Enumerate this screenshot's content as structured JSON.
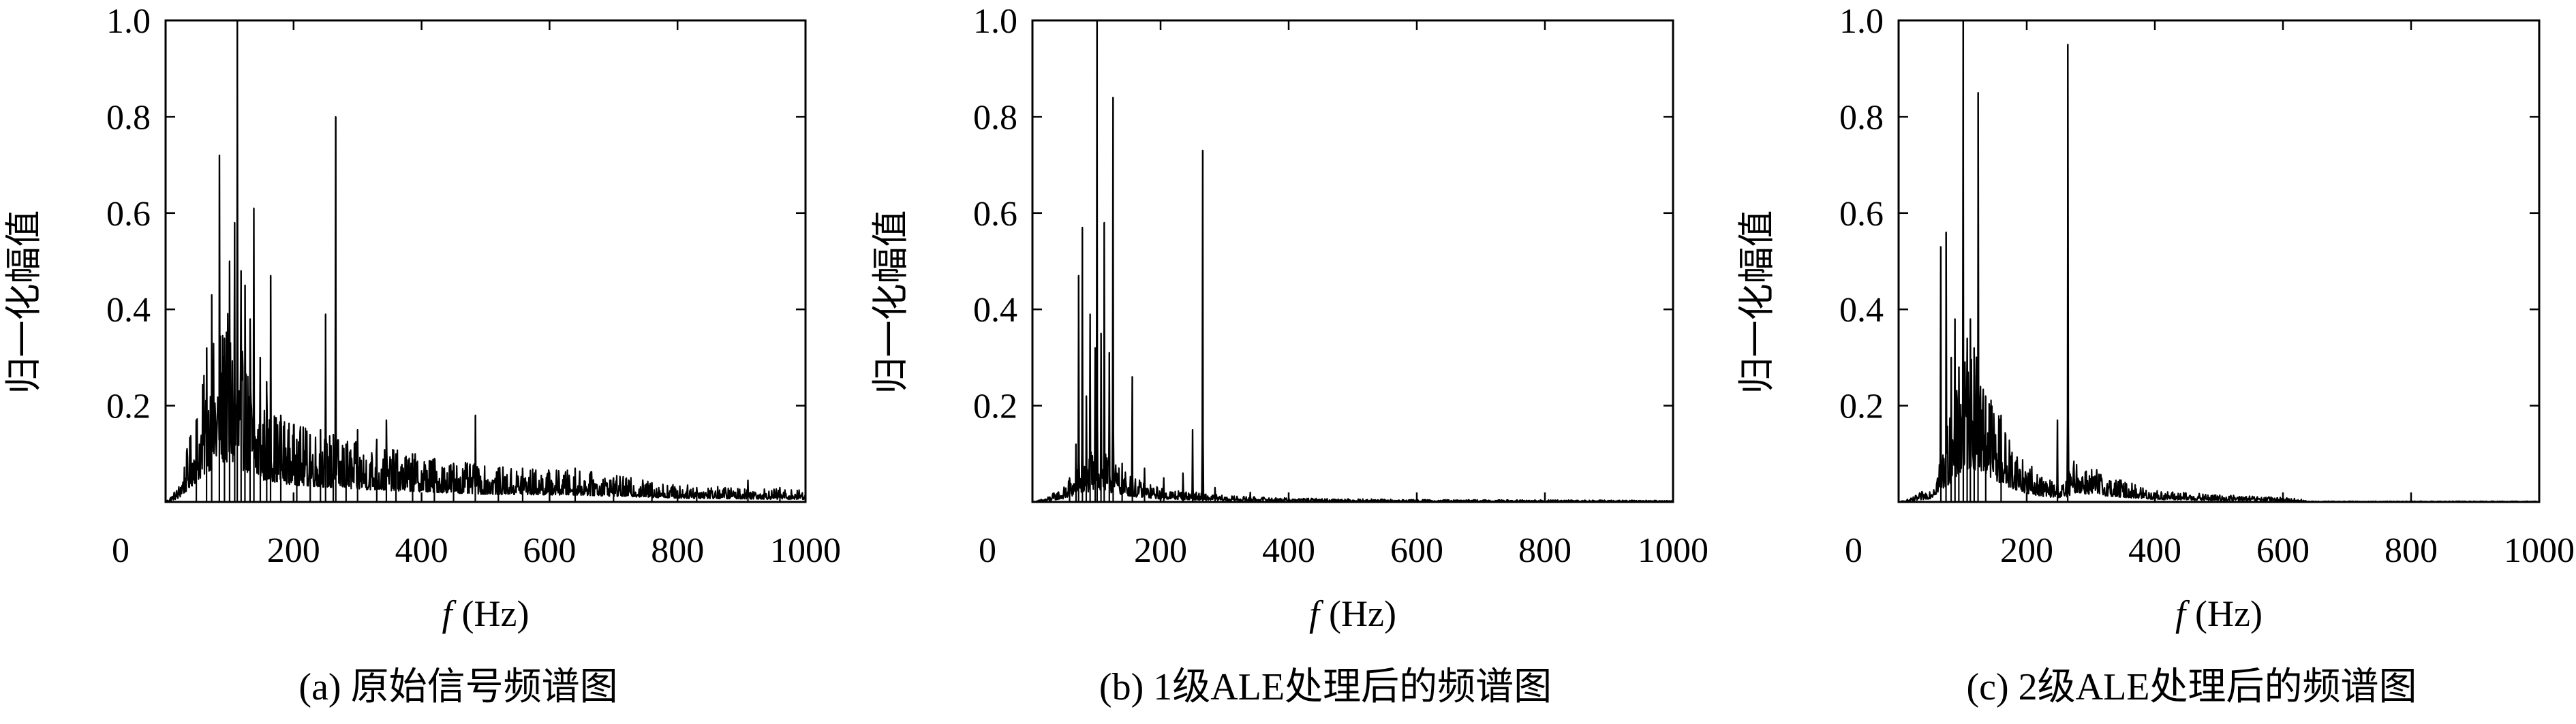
{
  "figure": {
    "panels": [
      {
        "caption": "(a) 原始信号频谱图",
        "ylabel": "归一化幅值",
        "xlabel_italic": "f",
        "xlabel_unit": "(Hz)"
      },
      {
        "caption": "(b) 1级ALE处理后的频谱图",
        "ylabel": "归一化幅值",
        "xlabel_italic": "f",
        "xlabel_unit": "(Hz)"
      },
      {
        "caption": "(c) 2级ALE处理后的频谱图",
        "ylabel": "归一化幅值",
        "xlabel_italic": "f",
        "xlabel_unit": "(Hz)"
      }
    ]
  },
  "chart_data": [
    {
      "type": "line",
      "title": "(a) 原始信号频谱图",
      "xlabel": "f (Hz)",
      "ylabel": "归一化幅值",
      "xlim": [
        0,
        1000
      ],
      "ylim": [
        0,
        1.0
      ],
      "x_ticks": [
        "0",
        "200",
        "400",
        "600",
        "800",
        "1000"
      ],
      "y_ticks": [
        "0.2",
        "0.4",
        "0.6",
        "0.8",
        "1.0"
      ],
      "grid": false,
      "noise_profile": [
        [
          0,
          0.0
        ],
        [
          20,
          0.02
        ],
        [
          40,
          0.09
        ],
        [
          60,
          0.16
        ],
        [
          80,
          0.22
        ],
        [
          100,
          0.24
        ],
        [
          120,
          0.19
        ],
        [
          150,
          0.13
        ],
        [
          200,
          0.1
        ],
        [
          300,
          0.075
        ],
        [
          400,
          0.06
        ],
        [
          500,
          0.045
        ],
        [
          650,
          0.04
        ],
        [
          800,
          0.022
        ],
        [
          1000,
          0.015
        ]
      ],
      "peaks": [
        [
          48,
          0.17
        ],
        [
          64,
          0.32
        ],
        [
          72,
          0.43
        ],
        [
          84,
          0.72
        ],
        [
          92,
          0.34
        ],
        [
          100,
          0.5
        ],
        [
          108,
          0.58
        ],
        [
          112,
          1.0
        ],
        [
          118,
          0.48
        ],
        [
          124,
          0.45
        ],
        [
          132,
          0.38
        ],
        [
          138,
          0.61
        ],
        [
          148,
          0.3
        ],
        [
          158,
          0.25
        ],
        [
          164,
          0.47
        ],
        [
          180,
          0.18
        ],
        [
          205,
          0.13
        ],
        [
          226,
          0.14
        ],
        [
          242,
          0.15
        ],
        [
          250,
          0.39
        ],
        [
          262,
          0.14
        ],
        [
          266,
          0.8
        ],
        [
          282,
          0.12
        ],
        [
          300,
          0.15
        ],
        [
          330,
          0.13
        ],
        [
          345,
          0.17
        ],
        [
          360,
          0.1
        ],
        [
          386,
          0.1
        ],
        [
          420,
          0.09
        ],
        [
          450,
          0.08
        ],
        [
          484,
          0.18
        ],
        [
          520,
          0.07
        ],
        [
          558,
          0.07
        ],
        [
          600,
          0.06
        ],
        [
          640,
          0.07
        ],
        [
          700,
          0.05
        ],
        [
          760,
          0.04
        ],
        [
          830,
          0.03
        ],
        [
          910,
          0.045
        ],
        [
          960,
          0.03
        ]
      ]
    },
    {
      "type": "line",
      "title": "(b) 1级ALE处理后的频谱图",
      "xlabel": "f (Hz)",
      "ylabel": "归一化幅值",
      "xlim": [
        0,
        1000
      ],
      "ylim": [
        0,
        1.0
      ],
      "x_ticks": [
        "0",
        "200",
        "400",
        "600",
        "800",
        "1000"
      ],
      "y_ticks": [
        "0.2",
        "0.4",
        "0.6",
        "0.8",
        "1.0"
      ],
      "grid": false,
      "noise_profile": [
        [
          0,
          0.0
        ],
        [
          20,
          0.005
        ],
        [
          50,
          0.02
        ],
        [
          75,
          0.05
        ],
        [
          100,
          0.07
        ],
        [
          130,
          0.05
        ],
        [
          160,
          0.03
        ],
        [
          200,
          0.018
        ],
        [
          260,
          0.012
        ],
        [
          300,
          0.008
        ],
        [
          400,
          0.005
        ],
        [
          600,
          0.003
        ],
        [
          1000,
          0.002
        ]
      ],
      "peaks": [
        [
          58,
          0.05
        ],
        [
          68,
          0.12
        ],
        [
          72,
          0.47
        ],
        [
          78,
          0.57
        ],
        [
          84,
          0.22
        ],
        [
          90,
          0.39
        ],
        [
          98,
          0.32
        ],
        [
          101,
          1.0
        ],
        [
          107,
          0.35
        ],
        [
          112,
          0.58
        ],
        [
          120,
          0.31
        ],
        [
          126,
          0.84
        ],
        [
          140,
          0.08
        ],
        [
          156,
          0.26
        ],
        [
          175,
          0.07
        ],
        [
          205,
          0.05
        ],
        [
          235,
          0.06
        ],
        [
          250,
          0.15
        ],
        [
          266,
          0.73
        ],
        [
          285,
          0.03
        ],
        [
          340,
          0.02
        ]
      ]
    },
    {
      "type": "line",
      "title": "(c) 2级ALE处理后的频谱图",
      "xlabel": "f (Hz)",
      "ylabel": "归一化幅值",
      "xlim": [
        0,
        1000
      ],
      "ylim": [
        0,
        1.0
      ],
      "x_ticks": [
        "0",
        "200",
        "400",
        "600",
        "800",
        "1000"
      ],
      "y_ticks": [
        "0.2",
        "0.4",
        "0.6",
        "0.8",
        "1.0"
      ],
      "grid": false,
      "noise_profile": [
        [
          0,
          0.0
        ],
        [
          20,
          0.005
        ],
        [
          50,
          0.02
        ],
        [
          70,
          0.08
        ],
        [
          90,
          0.14
        ],
        [
          110,
          0.2
        ],
        [
          130,
          0.18
        ],
        [
          150,
          0.13
        ],
        [
          170,
          0.09
        ],
        [
          200,
          0.05
        ],
        [
          230,
          0.03
        ],
        [
          260,
          0.025
        ],
        [
          275,
          0.055
        ],
        [
          300,
          0.045
        ],
        [
          340,
          0.03
        ],
        [
          400,
          0.015
        ],
        [
          480,
          0.01
        ],
        [
          620,
          0.005
        ],
        [
          640,
          0.001
        ],
        [
          1000,
          0.001
        ]
      ],
      "peaks": [
        [
          66,
          0.53
        ],
        [
          74,
          0.56
        ],
        [
          82,
          0.3
        ],
        [
          88,
          0.38
        ],
        [
          94,
          0.28
        ],
        [
          101,
          1.0
        ],
        [
          107,
          0.34
        ],
        [
          112,
          0.38
        ],
        [
          118,
          0.32
        ],
        [
          124,
          0.85
        ],
        [
          136,
          0.22
        ],
        [
          160,
          0.18
        ],
        [
          248,
          0.17
        ],
        [
          264,
          0.95
        ]
      ]
    }
  ]
}
